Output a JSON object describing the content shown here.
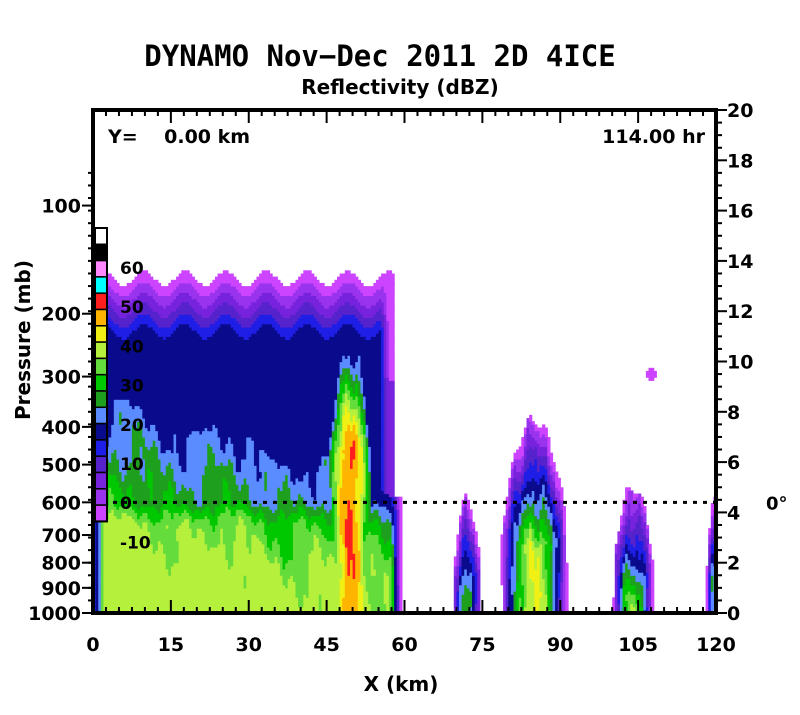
{
  "chart_data": {
    "type": "heatmap",
    "title": "DYNAMO  Nov−Dec 2011  2D 4ICE",
    "subtitle": "Reflectivity (dBZ)",
    "xlabel": "X (km)",
    "ylabel": "Pressure (mb)",
    "xlim": [
      0,
      120
    ],
    "x_ticks": [
      "0",
      "15",
      "30",
      "45",
      "60",
      "75",
      "90",
      "105",
      "120"
    ],
    "x_tick_values": [
      0,
      15,
      30,
      45,
      60,
      75,
      90,
      105,
      120
    ],
    "left_axis_ticks": [
      "100",
      "200",
      "300",
      "400",
      "500",
      "600",
      "700",
      "800",
      "900",
      "1000"
    ],
    "left_axis_values_mb": [
      100,
      200,
      300,
      400,
      500,
      600,
      700,
      800,
      900,
      1000
    ],
    "left_axis_heights_km": [
      16.2,
      11.9,
      9.4,
      7.4,
      5.9,
      4.4,
      3.1,
      2.0,
      1.0,
      0.0
    ],
    "right_axis_ticks": [
      "0",
      "2",
      "4",
      "6",
      "8",
      "10",
      "12",
      "14",
      "16",
      "18",
      "20"
    ],
    "right_axis_values_km": [
      0,
      2,
      4,
      6,
      8,
      10,
      12,
      14,
      16,
      18,
      20
    ],
    "ylim_km": [
      0,
      20
    ],
    "annotation_left": "Y=    0.00 km",
    "annotation_right": "114.00 hr",
    "freezing_level_label": "0°",
    "freezing_level_km": 4.4,
    "colorbar": {
      "labels": [
        "60",
        "50",
        "40",
        "30",
        "20",
        "10",
        "0",
        "-10"
      ],
      "label_values": [
        60,
        50,
        40,
        30,
        20,
        10,
        0,
        -10
      ],
      "levels": [
        -10,
        -5,
        0,
        5,
        10,
        15,
        20,
        25,
        30,
        35,
        40,
        45,
        50,
        55,
        60,
        65
      ],
      "colors": [
        "#cc44ff",
        "#9933ee",
        "#7722dd",
        "#5522cc",
        "#1e1ee6",
        "#0a0a8c",
        "#5a8cff",
        "#1ea01e",
        "#00c800",
        "#64dc3c",
        "#b4f03c",
        "#f0f014",
        "#ffb400",
        "#ff1e1e",
        "#00ffff",
        "#ff88ff",
        "#000000",
        "#ffffff"
      ]
    },
    "cells": [
      {
        "type": "anvil",
        "x1": 0,
        "x2": 57,
        "top_km": 13.3,
        "top_dbz": -10,
        "anvil_base_km": 9.6
      },
      {
        "type": "convective",
        "x_center": 49.5,
        "width_km": 9,
        "top_km": 13.2,
        "core_dbz": 55,
        "core_top_km": 6.5
      },
      {
        "type": "stratiform",
        "x1": 0,
        "x2": 60,
        "top_km": 8.0,
        "max_dbz": 40
      },
      {
        "type": "convective",
        "x_center": 72,
        "width_km": 4,
        "top_km": 4.5,
        "core_dbz": 30
      },
      {
        "type": "convective",
        "x_center": 85,
        "width_km": 10,
        "top_km": 7.7,
        "core_dbz": 45
      },
      {
        "type": "convective",
        "x_center": 104,
        "width_km": 6,
        "top_km": 5.0,
        "core_dbz": 40
      },
      {
        "type": "convective",
        "x_center": 119.5,
        "width_km": 2,
        "top_km": 4.5,
        "core_dbz": 25
      },
      {
        "type": "isolated",
        "x_center": 107.5,
        "z_km": 9.5,
        "dbz": -10
      }
    ]
  }
}
